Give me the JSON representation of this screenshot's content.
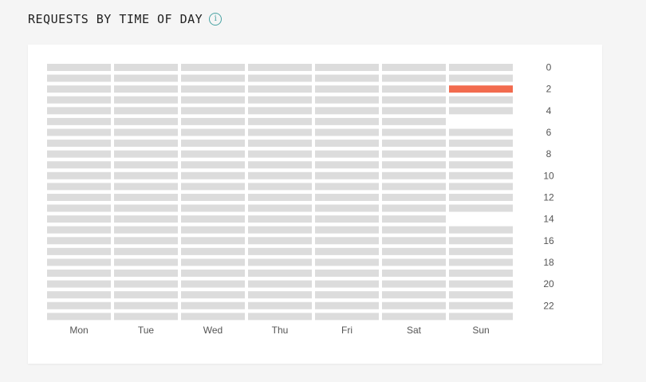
{
  "header": {
    "title": "REQUESTS BY TIME OF DAY",
    "info_icon": "info-icon",
    "info_glyph": "i"
  },
  "colors": {
    "empty": "#dcdcdc",
    "hot": "#f26b4e",
    "blank": "#ffffff",
    "accent": "#4aa3a3"
  },
  "chart_data": {
    "type": "heatmap",
    "title": "REQUESTS BY TIME OF DAY",
    "x_categories": [
      "Mon",
      "Tue",
      "Wed",
      "Thu",
      "Fri",
      "Sat",
      "Sun"
    ],
    "y_categories": [
      0,
      1,
      2,
      3,
      4,
      5,
      6,
      7,
      8,
      9,
      10,
      11,
      12,
      13,
      14,
      15,
      16,
      17,
      18,
      19,
      20,
      21,
      22,
      23
    ],
    "y_tick_labels": [
      "0",
      "2",
      "4",
      "6",
      "8",
      "10",
      "12",
      "14",
      "16",
      "18",
      "20",
      "22"
    ],
    "y_axis_position": "right",
    "levels": {
      "0": "empty",
      "1": "hot",
      "-1": "blank"
    },
    "values": [
      [
        0,
        0,
        0,
        0,
        0,
        0,
        0,
        0,
        0,
        0,
        0,
        0,
        0,
        0,
        0,
        0,
        0,
        0,
        0,
        0,
        0,
        0,
        0,
        0
      ],
      [
        0,
        0,
        0,
        0,
        0,
        0,
        0,
        0,
        0,
        0,
        0,
        0,
        0,
        0,
        0,
        0,
        0,
        0,
        0,
        0,
        0,
        0,
        0,
        0
      ],
      [
        0,
        0,
        0,
        0,
        0,
        0,
        0,
        0,
        0,
        0,
        0,
        0,
        0,
        0,
        0,
        0,
        0,
        0,
        0,
        0,
        0,
        0,
        0,
        0
      ],
      [
        0,
        0,
        0,
        0,
        0,
        0,
        0,
        0,
        0,
        0,
        0,
        0,
        0,
        0,
        0,
        0,
        0,
        0,
        0,
        0,
        0,
        0,
        0,
        0
      ],
      [
        0,
        0,
        0,
        0,
        0,
        0,
        0,
        0,
        0,
        0,
        0,
        0,
        0,
        0,
        0,
        0,
        0,
        0,
        0,
        0,
        0,
        0,
        0,
        0
      ],
      [
        0,
        0,
        0,
        0,
        0,
        0,
        0,
        0,
        0,
        0,
        0,
        0,
        0,
        0,
        0,
        0,
        0,
        0,
        0,
        0,
        0,
        0,
        0,
        0
      ],
      [
        0,
        0,
        1,
        0,
        0,
        -1,
        0,
        0,
        0,
        0,
        0,
        0,
        0,
        0,
        -1,
        0,
        0,
        0,
        0,
        0,
        0,
        0,
        0,
        0
      ]
    ],
    "grid": false,
    "legend": "none"
  }
}
